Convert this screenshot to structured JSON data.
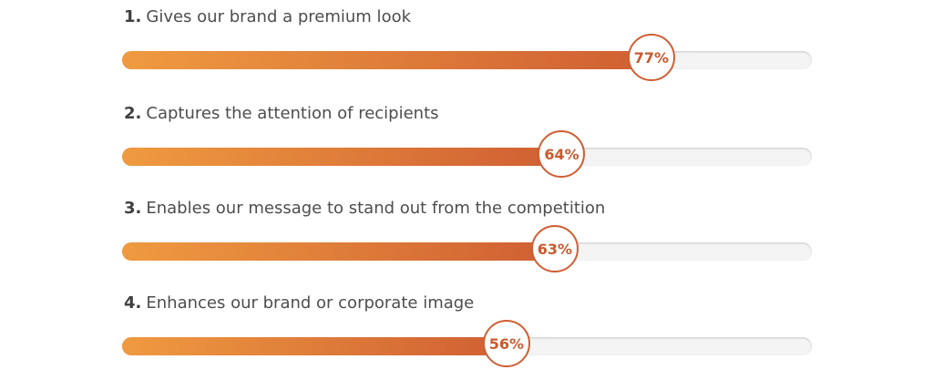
{
  "chart_data": {
    "type": "bar",
    "orientation": "horizontal",
    "categories": [
      "Gives our brand a premium look",
      "Captures the attention of recipients",
      "Enables our message to stand out from the competition",
      "Enhances our brand or corporate image"
    ],
    "numbers": [
      "1.",
      "2.",
      "3.",
      "4."
    ],
    "values": [
      77,
      64,
      63,
      56
    ],
    "value_labels": [
      "77%",
      "64%",
      "63%",
      "56%"
    ],
    "xlim": [
      0,
      100
    ],
    "unit": "%",
    "grid": false,
    "legend": "none"
  },
  "colors": {
    "gradient_start": "#ef9a40",
    "gradient_end": "#cf5f33",
    "track": "#f4f4f4",
    "badge_border": "#cf5f33",
    "badge_text": "#c95a2f",
    "label_text": "#4d4d4d"
  }
}
